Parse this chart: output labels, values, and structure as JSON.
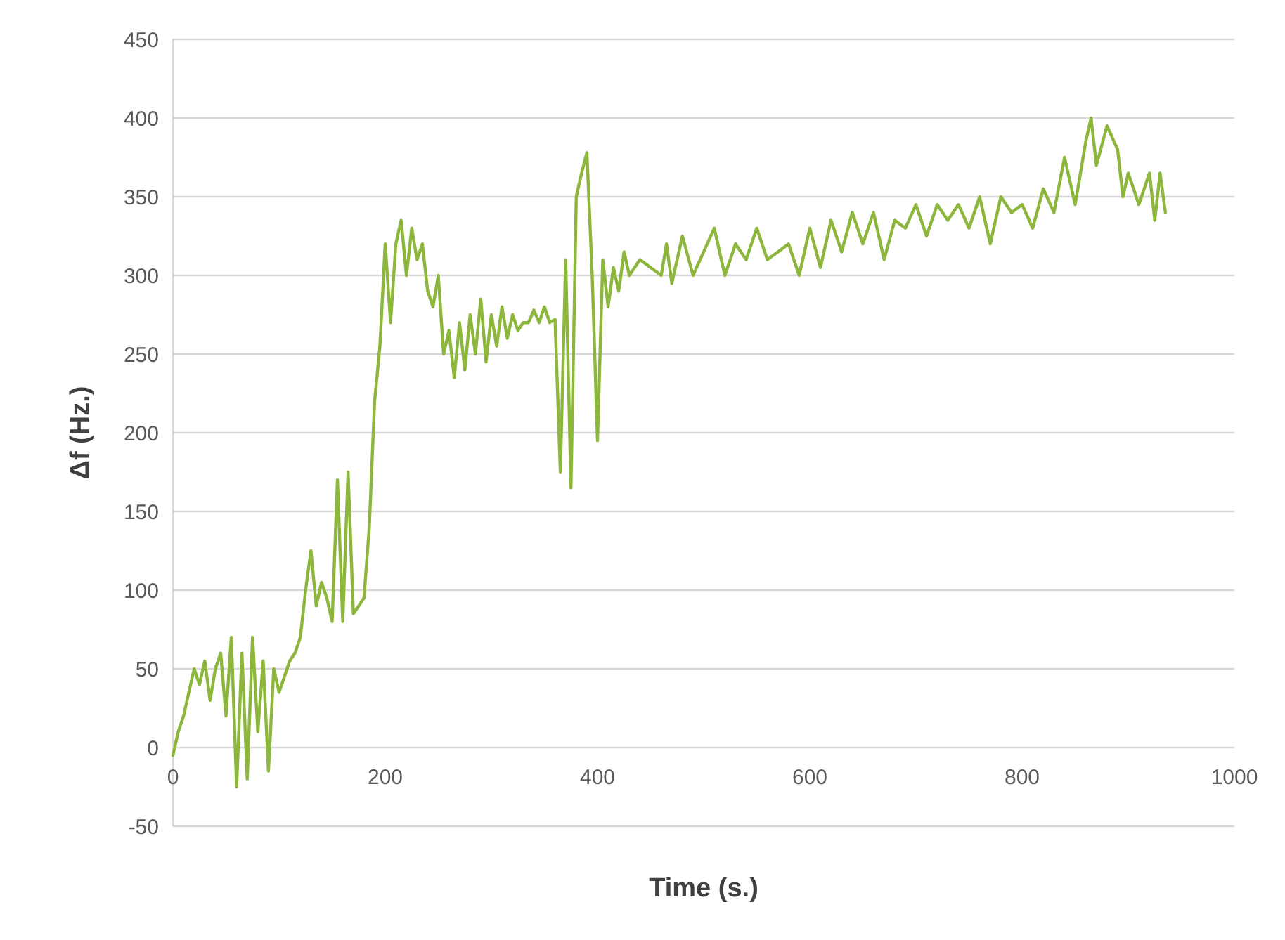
{
  "chart_data": {
    "type": "line",
    "xlabel": "Time (s.)",
    "ylabel": "Δf (Hz.)",
    "xlim": [
      0,
      1000
    ],
    "xticks": [
      0,
      200,
      400,
      600,
      800,
      1000
    ],
    "ylim": [
      -50,
      450
    ],
    "yticks": [
      -50,
      0,
      50,
      100,
      150,
      200,
      250,
      300,
      350,
      400,
      450
    ],
    "grid": "y",
    "marker": "none",
    "line_style": "solid",
    "series": [
      {
        "color": "#8db63c",
        "x": [
          0,
          5,
          10,
          15,
          20,
          25,
          30,
          35,
          40,
          45,
          50,
          55,
          60,
          65,
          70,
          75,
          80,
          85,
          90,
          95,
          100,
          105,
          110,
          115,
          120,
          125,
          130,
          135,
          140,
          145,
          150,
          155,
          160,
          165,
          170,
          175,
          180,
          185,
          190,
          195,
          200,
          205,
          210,
          215,
          220,
          225,
          230,
          235,
          240,
          245,
          250,
          255,
          260,
          265,
          270,
          275,
          280,
          285,
          290,
          295,
          300,
          305,
          310,
          315,
          320,
          325,
          330,
          335,
          340,
          345,
          350,
          355,
          360,
          365,
          370,
          375,
          380,
          385,
          390,
          395,
          400,
          405,
          410,
          415,
          420,
          425,
          430,
          440,
          450,
          460,
          465,
          470,
          480,
          490,
          500,
          510,
          520,
          530,
          540,
          550,
          560,
          570,
          580,
          590,
          600,
          610,
          620,
          630,
          640,
          650,
          660,
          670,
          680,
          690,
          700,
          710,
          720,
          730,
          740,
          750,
          760,
          770,
          780,
          790,
          800,
          810,
          820,
          830,
          840,
          850,
          860,
          865,
          870,
          880,
          890,
          895,
          900,
          910,
          920,
          925,
          930,
          935
        ],
        "values": [
          -5,
          10,
          20,
          35,
          50,
          40,
          55,
          30,
          50,
          60,
          20,
          70,
          -25,
          60,
          -20,
          70,
          10,
          55,
          -15,
          50,
          35,
          45,
          55,
          60,
          70,
          100,
          125,
          90,
          105,
          95,
          80,
          170,
          80,
          175,
          85,
          90,
          95,
          140,
          220,
          255,
          320,
          270,
          320,
          335,
          300,
          330,
          310,
          320,
          290,
          280,
          300,
          250,
          265,
          235,
          270,
          240,
          275,
          250,
          285,
          245,
          275,
          255,
          280,
          260,
          275,
          265,
          270,
          270,
          278,
          270,
          280,
          270,
          272,
          175,
          310,
          165,
          350,
          365,
          378,
          300,
          195,
          310,
          280,
          305,
          290,
          315,
          300,
          310,
          305,
          300,
          320,
          295,
          325,
          300,
          315,
          330,
          300,
          320,
          310,
          330,
          310,
          315,
          320,
          300,
          330,
          305,
          335,
          315,
          340,
          320,
          340,
          310,
          335,
          330,
          345,
          325,
          345,
          335,
          345,
          330,
          350,
          320,
          350,
          340,
          345,
          330,
          355,
          340,
          375,
          345,
          385,
          400,
          370,
          395,
          380,
          350,
          365,
          345,
          365,
          335,
          365,
          340
        ]
      }
    ]
  }
}
